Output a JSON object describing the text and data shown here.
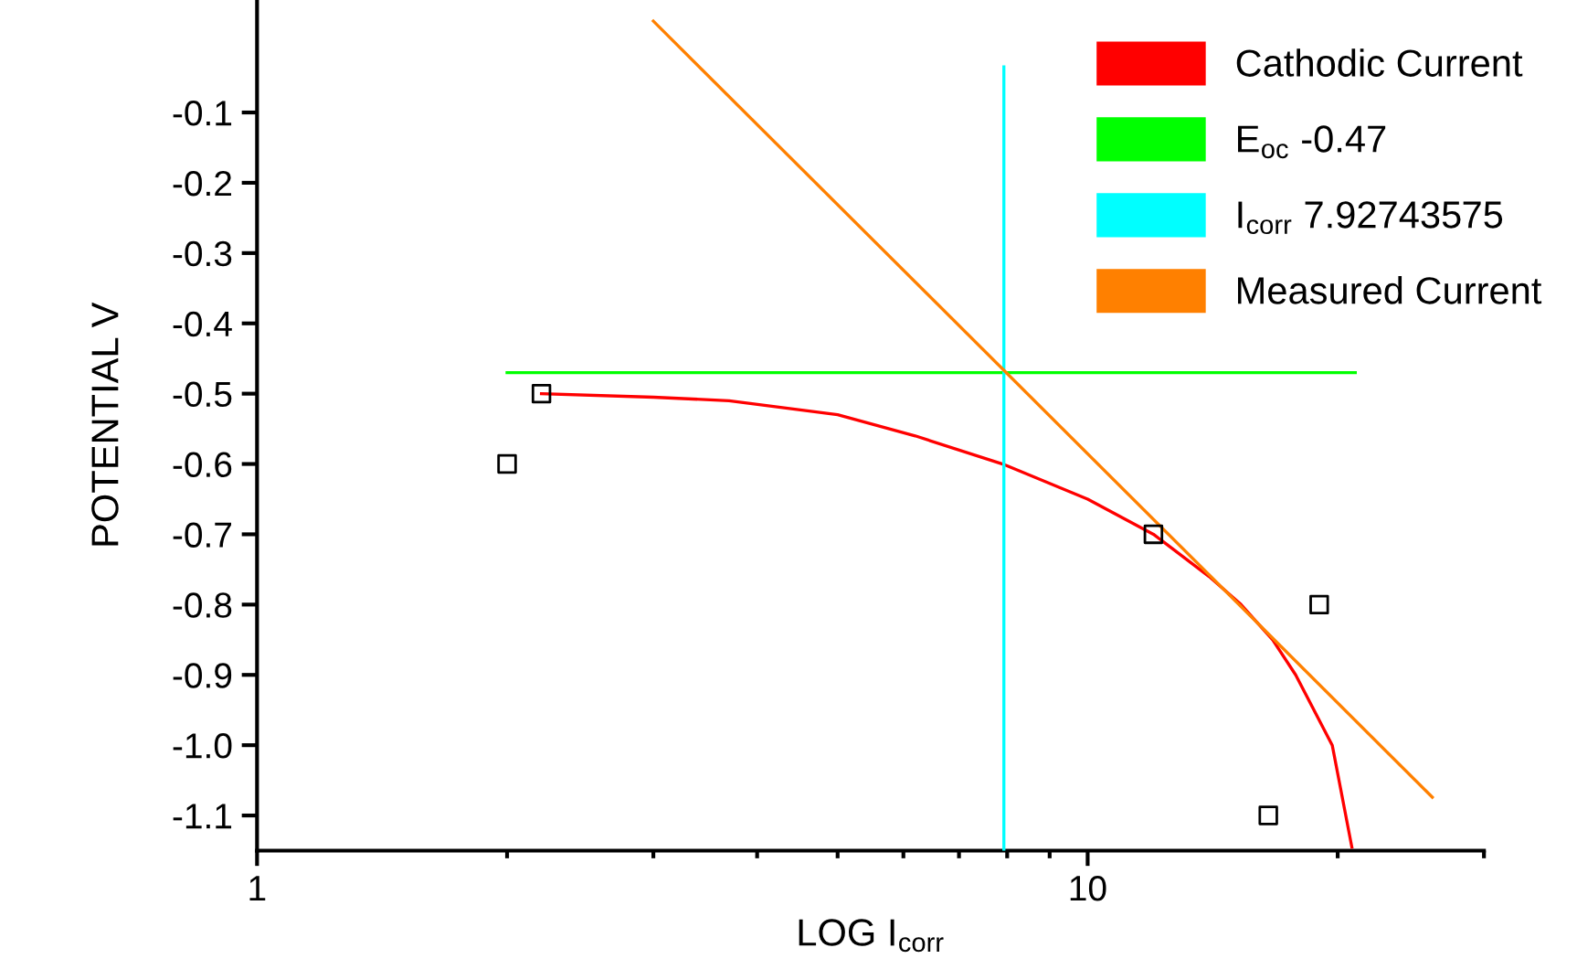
{
  "chart_data": {
    "type": "line",
    "xlabel": "LOG I$_{corr}$",
    "ylabel": "POTENTIAL V",
    "log": "x",
    "xlim": [
      1,
      30
    ],
    "ylim": [
      -1.15,
      0.06
    ],
    "xticks": [
      1,
      {
        "value": 2,
        "label": null
      },
      {
        "value": 3,
        "label": null
      },
      {
        "value": 4,
        "label": null
      },
      {
        "value": 5,
        "label": null
      },
      {
        "value": 6,
        "label": null
      },
      {
        "value": 7,
        "label": null
      },
      {
        "value": 8,
        "label": null
      },
      {
        "value": 9,
        "label": null
      },
      10,
      {
        "value": 20,
        "label": null
      },
      {
        "value": 30,
        "label": null
      }
    ],
    "yticks": [
      {
        "value": -0.1,
        "label": "-0.1"
      },
      {
        "value": -0.2,
        "label": "-0.2"
      },
      {
        "value": -0.3,
        "label": "-0.3"
      },
      {
        "value": -0.4,
        "label": "-0.4"
      },
      {
        "value": -0.5,
        "label": "-0.5"
      },
      {
        "value": -0.6,
        "label": "-0.6"
      },
      {
        "value": -0.7,
        "label": "-0.7"
      },
      {
        "value": -0.8,
        "label": "-0.8"
      },
      {
        "value": -0.9,
        "label": "-0.9"
      },
      {
        "value": -1.0,
        "label": "-1.0"
      },
      {
        "value": -1.1,
        "label": "-1.1"
      }
    ],
    "grid": false,
    "legend": "top right",
    "series": [
      {
        "type": "scatter",
        "marker": "square",
        "color": "#000000",
        "x": [
          2,
          2.2,
          12,
          16.5,
          19
        ],
        "values": [
          -0.6,
          -0.5,
          -0.7,
          -1.1,
          -0.8
        ]
      },
      {
        "name": "Cathodic Current",
        "color": "#ff0000",
        "x": [
          2.2,
          3,
          3.7,
          5,
          6.2,
          7.9,
          10,
          12,
          14,
          15.3,
          16.7,
          17.8,
          19.7,
          20.8
        ],
        "values": [
          -0.5,
          -0.505,
          -0.51,
          -0.53,
          -0.56,
          -0.6,
          -0.65,
          -0.7,
          -0.76,
          -0.8,
          -0.85,
          -0.9,
          -1.0,
          -1.145
        ]
      },
      {
        "name": "E$_{oc}$ -0.47",
        "color": "#00ff00",
        "x": [
          2,
          21
        ],
        "values": [
          -0.47,
          -0.47
        ]
      },
      {
        "name": "I$_{corr}$ 7.92743575",
        "color": "#00ffff",
        "x": [
          7.92743575,
          7.92743575
        ],
        "values": [
          -1.15,
          -0.035
        ]
      },
      {
        "name": "Measured Current",
        "color": "#ff8000",
        "x": [
          3,
          26
        ],
        "values": [
          0.03,
          -1.074
        ]
      }
    ]
  }
}
